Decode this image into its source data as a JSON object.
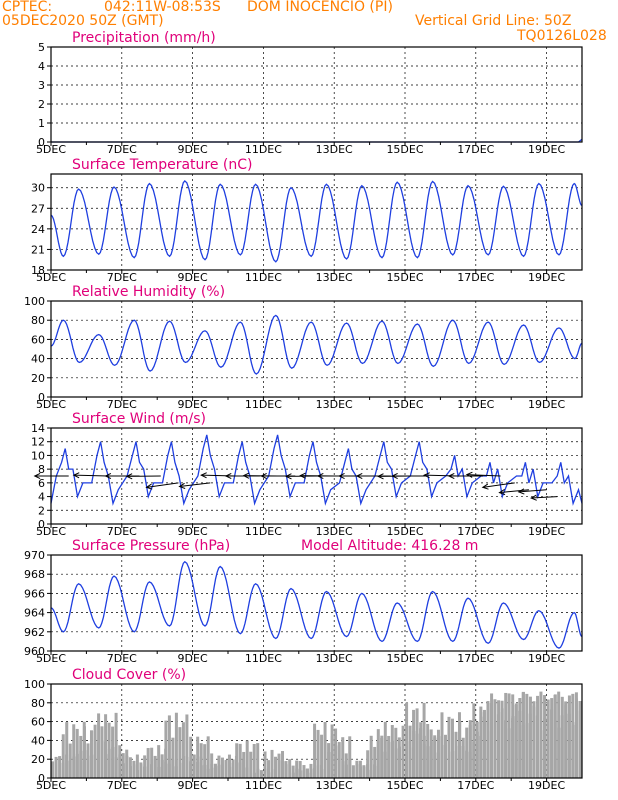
{
  "header": {
    "source": "CPTEC:",
    "location": "042:11W-08:53S",
    "station": "DOM INOCENCIO (PI)",
    "run": "05DEC2020 50Z (GMT)",
    "grid_note": "Vertical Grid Line: 50Z",
    "code": "TQ0126L028"
  },
  "colors": {
    "header": "#ff7f00",
    "title": "#e0007a",
    "series": "#1f3fe0",
    "cloud": "#a6a6a6",
    "axis": "#000000"
  },
  "x_axis": {
    "labels": [
      "5DEC",
      "7DEC",
      "9DEC",
      "11DEC",
      "13DEC",
      "15DEC",
      "17DEC",
      "19DEC"
    ],
    "label_days": [
      0,
      2,
      4,
      6,
      8,
      10,
      12,
      14
    ],
    "range_days": [
      0,
      15
    ]
  },
  "chart_data": [
    {
      "id": "precip",
      "type": "line",
      "title": "Precipitation (mm/h)",
      "ylim": [
        0,
        5
      ],
      "yticks": [
        0,
        1,
        2,
        3,
        4,
        5
      ],
      "x_days": [
        0,
        14.9,
        15
      ],
      "y": [
        0,
        0,
        0.15
      ]
    },
    {
      "id": "temp",
      "type": "line",
      "title": "Surface Temperature (nC)",
      "ylim": [
        18,
        32
      ],
      "yticks": [
        18,
        21,
        24,
        27,
        30
      ],
      "daily_min": [
        20.0,
        20.3,
        19.8,
        20.0,
        19.5,
        20.2,
        19.2,
        20.0,
        19.6,
        19.8,
        19.8,
        20.2,
        20.2,
        20.0,
        20.2,
        20.5
      ],
      "daily_max": [
        29.8,
        30.1,
        30.6,
        31.0,
        30.5,
        30.5,
        30.0,
        30.5,
        30.3,
        30.8,
        30.9,
        30.3,
        30.2,
        30.6,
        30.6,
        29.6
      ],
      "start_value": 26.0,
      "end_value": 27.4
    },
    {
      "id": "rh",
      "type": "line",
      "title": "Relative Humidity (%)",
      "ylim": [
        0,
        100
      ],
      "yticks": [
        0,
        20,
        40,
        60,
        80,
        100
      ],
      "daily_max": [
        80,
        65,
        80,
        79,
        69,
        78,
        85,
        78,
        77,
        79,
        76,
        80,
        78,
        75,
        72,
        56
      ],
      "daily_min": [
        36,
        33,
        27,
        36,
        31,
        24,
        30,
        33,
        35,
        35,
        32,
        35,
        34,
        36,
        40,
        42
      ],
      "start_value": 53,
      "end_value": 56
    },
    {
      "id": "wind",
      "type": "line",
      "title": "Surface Wind (m/s)",
      "ylim": [
        0,
        14
      ],
      "yticks": [
        0,
        2,
        4,
        6,
        8,
        10,
        12,
        14
      ],
      "daily_peak": [
        11,
        12,
        12,
        12,
        13,
        12,
        13,
        12,
        11,
        12,
        12,
        10,
        9,
        9,
        9,
        6
      ],
      "daily_low": [
        4,
        3,
        4,
        3,
        4,
        3,
        4,
        3,
        3,
        4,
        4,
        4,
        4,
        4,
        3,
        3
      ],
      "start_value": 3,
      "end_value": 3,
      "vectors": {
        "x_days": [
          0.5,
          1.6,
          2.5,
          3.1,
          3.6,
          4.5,
          5.2,
          5.9,
          6.4,
          6.9,
          7.6,
          8.0,
          8.5,
          9.1,
          9.6,
          10.2,
          10.6,
          11.5,
          12.2,
          12.7,
          13.1,
          13.5,
          14.0,
          14.3
        ],
        "speed": [
          7,
          7,
          7,
          7,
          6,
          6,
          7,
          7,
          7,
          7,
          7,
          7,
          7,
          7,
          7,
          7,
          7,
          7,
          7,
          7,
          6,
          5,
          5,
          4
        ],
        "dir_deg": [
          180,
          185,
          180,
          178,
          200,
          205,
          185,
          180,
          182,
          180,
          178,
          182,
          180,
          180,
          180,
          178,
          180,
          185,
          180,
          188,
          200,
          210,
          215,
          220
        ]
      }
    },
    {
      "id": "pres",
      "type": "line",
      "title": "Surface Pressure (hPa)",
      "altitude_note": "Model Altitude: 416.28 m",
      "ylim": [
        960,
        970
      ],
      "yticks": [
        960,
        962,
        964,
        966,
        968,
        970
      ],
      "daily_max": [
        967.0,
        967.8,
        967.2,
        969.3,
        968.8,
        967.0,
        966.5,
        966.2,
        966.0,
        965.0,
        966.2,
        965.5,
        965.0,
        964.2,
        964.0,
        962.0
      ],
      "daily_min": [
        962.0,
        962.4,
        962.0,
        962.6,
        962.6,
        961.8,
        961.3,
        961.3,
        961.5,
        961.0,
        961.0,
        961.0,
        960.8,
        961.2,
        960.3,
        961.0
      ],
      "start_value": 964.5,
      "end_value": 961.5
    },
    {
      "id": "cloud",
      "type": "bar",
      "title": "Cloud Cover (%)",
      "ylim": [
        0,
        100
      ],
      "yticks": [
        0,
        20,
        40,
        60,
        80,
        100
      ],
      "x_days": [
        0.2,
        0.6,
        0.9,
        1.2,
        1.5,
        1.8,
        2.2,
        2.5,
        2.9,
        3.2,
        3.5,
        3.9,
        4.2,
        4.5,
        4.9,
        5.2,
        5.5,
        6.0,
        6.3,
        6.7,
        7.1,
        7.4,
        7.7,
        8.1,
        8.5,
        8.9,
        9.2,
        9.5,
        9.9,
        10.2,
        10.5,
        10.8,
        11.2,
        11.5,
        11.8,
        12.1,
        12.4,
        12.7,
        13.0,
        13.3,
        13.6,
        13.9,
        14.2,
        14.5,
        14.8,
        15.0
      ],
      "values": [
        25,
        60,
        30,
        55,
        70,
        35,
        25,
        15,
        35,
        20,
        70,
        25,
        45,
        15,
        25,
        20,
        40,
        10,
        30,
        20,
        10,
        15,
        60,
        45,
        20,
        15,
        45,
        60,
        40,
        80,
        60,
        45,
        70,
        35,
        60,
        80,
        85,
        90,
        92,
        90,
        92,
        90,
        92,
        90,
        92,
        91
      ]
    }
  ]
}
